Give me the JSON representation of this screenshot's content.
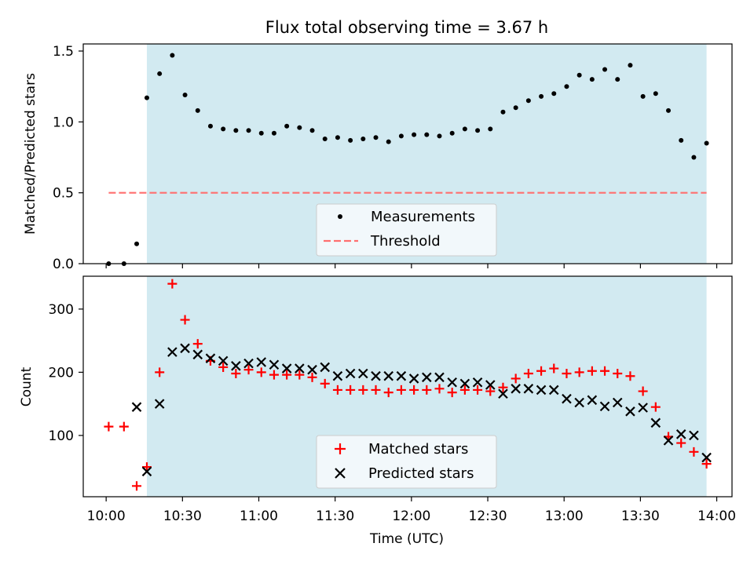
{
  "figure": {
    "title": "Flux total observing time = 3.67 h"
  },
  "colors": {
    "shade": "#add8e6",
    "measurement": "#000000",
    "threshold": "#ff6f6f",
    "matched": "#ff0000",
    "predicted": "#000000",
    "axis": "#000000"
  },
  "chart_data": [
    {
      "type": "scatter",
      "ylabel": "Matched/Predicted stars",
      "xlim": [
        "09:51",
        "14:06"
      ],
      "ylim": [
        0,
        1.55
      ],
      "y_ticks": [
        "0.0",
        "0.5",
        "1.0",
        "1.5"
      ],
      "shaded_interval": [
        "10:16",
        "13:56"
      ],
      "legend_position": "lower center",
      "legend": [
        "Measurements",
        "Threshold"
      ],
      "series": [
        {
          "name": "Measurements",
          "style": "dots",
          "x": [
            "10:01",
            "10:07",
            "10:12",
            "10:16",
            "10:21",
            "10:26",
            "10:31",
            "10:36",
            "10:41",
            "10:46",
            "10:51",
            "10:56",
            "11:01",
            "11:06",
            "11:11",
            "11:16",
            "11:21",
            "11:26",
            "11:31",
            "11:36",
            "11:41",
            "11:46",
            "11:51",
            "11:56",
            "12:01",
            "12:06",
            "12:11",
            "12:16",
            "12:21",
            "12:26",
            "12:31",
            "12:36",
            "12:41",
            "12:46",
            "12:51",
            "12:56",
            "13:01",
            "13:06",
            "13:11",
            "13:16",
            "13:21",
            "13:26",
            "13:31",
            "13:36",
            "13:41",
            "13:46",
            "13:51",
            "13:56"
          ],
          "y": [
            0.0,
            0.0,
            0.14,
            1.17,
            1.34,
            1.47,
            1.19,
            1.08,
            0.97,
            0.95,
            0.94,
            0.94,
            0.92,
            0.92,
            0.97,
            0.96,
            0.94,
            0.88,
            0.89,
            0.87,
            0.88,
            0.89,
            0.86,
            0.9,
            0.91,
            0.91,
            0.9,
            0.92,
            0.95,
            0.94,
            0.95,
            1.07,
            1.1,
            1.15,
            1.18,
            1.2,
            1.25,
            1.33,
            1.3,
            1.37,
            1.3,
            1.4,
            1.18,
            1.2,
            1.08,
            0.87,
            0.75,
            0.85
          ]
        },
        {
          "name": "Threshold",
          "style": "dashed",
          "x": [
            "10:01",
            "13:56"
          ],
          "y": [
            0.5,
            0.5
          ]
        }
      ]
    },
    {
      "type": "scatter",
      "xlabel": "Time (UTC)",
      "ylabel": "Count",
      "xlim": [
        "09:51",
        "14:06"
      ],
      "ylim": [
        3,
        352
      ],
      "y_ticks": [
        "100",
        "200",
        "300"
      ],
      "x_ticks": [
        "10:00",
        "10:30",
        "11:00",
        "11:30",
        "12:00",
        "12:30",
        "13:00",
        "13:30",
        "14:00"
      ],
      "shaded_interval": [
        "10:16",
        "13:56"
      ],
      "legend_position": "lower center",
      "legend": [
        "Matched stars",
        "Predicted stars"
      ],
      "series": [
        {
          "name": "Matched stars",
          "marker": "+",
          "x": [
            "10:01",
            "10:07",
            "10:12",
            "10:16",
            "10:21",
            "10:26",
            "10:31",
            "10:36",
            "10:41",
            "10:46",
            "10:51",
            "10:56",
            "11:01",
            "11:06",
            "11:11",
            "11:16",
            "11:21",
            "11:26",
            "11:31",
            "11:36",
            "11:41",
            "11:46",
            "11:51",
            "11:56",
            "12:01",
            "12:06",
            "12:11",
            "12:16",
            "12:21",
            "12:26",
            "12:31",
            "12:36",
            "12:41",
            "12:46",
            "12:51",
            "12:56",
            "13:01",
            "13:06",
            "13:11",
            "13:16",
            "13:21",
            "13:26",
            "13:31",
            "13:36",
            "13:41",
            "13:46",
            "13:51",
            "13:56"
          ],
          "y": [
            114,
            114,
            20,
            50,
            200,
            340,
            283,
            245,
            218,
            208,
            198,
            204,
            200,
            196,
            196,
            196,
            192,
            182,
            172,
            172,
            172,
            172,
            168,
            172,
            172,
            172,
            174,
            168,
            172,
            172,
            170,
            176,
            190,
            198,
            202,
            206,
            198,
            200,
            202,
            202,
            198,
            194,
            170,
            145,
            98,
            88,
            74,
            55
          ]
        },
        {
          "name": "Predicted stars",
          "marker": "x",
          "x": [
            "10:12",
            "10:16",
            "10:21",
            "10:26",
            "10:31",
            "10:36",
            "10:41",
            "10:46",
            "10:51",
            "10:56",
            "11:01",
            "11:06",
            "11:11",
            "11:16",
            "11:21",
            "11:26",
            "11:31",
            "11:36",
            "11:41",
            "11:46",
            "11:51",
            "11:56",
            "12:01",
            "12:06",
            "12:11",
            "12:16",
            "12:21",
            "12:26",
            "12:31",
            "12:36",
            "12:41",
            "12:46",
            "12:51",
            "12:56",
            "13:01",
            "13:06",
            "13:11",
            "13:16",
            "13:21",
            "13:26",
            "13:31",
            "13:36",
            "13:41",
            "13:46",
            "13:51",
            "13:56"
          ],
          "y": [
            145,
            43,
            150,
            232,
            238,
            228,
            222,
            218,
            210,
            214,
            216,
            212,
            206,
            206,
            204,
            208,
            194,
            198,
            198,
            194,
            194,
            194,
            190,
            192,
            192,
            184,
            182,
            184,
            180,
            166,
            174,
            174,
            172,
            172,
            158,
            152,
            156,
            146,
            152,
            138,
            144,
            120,
            92,
            102,
            100,
            65
          ]
        }
      ]
    }
  ]
}
